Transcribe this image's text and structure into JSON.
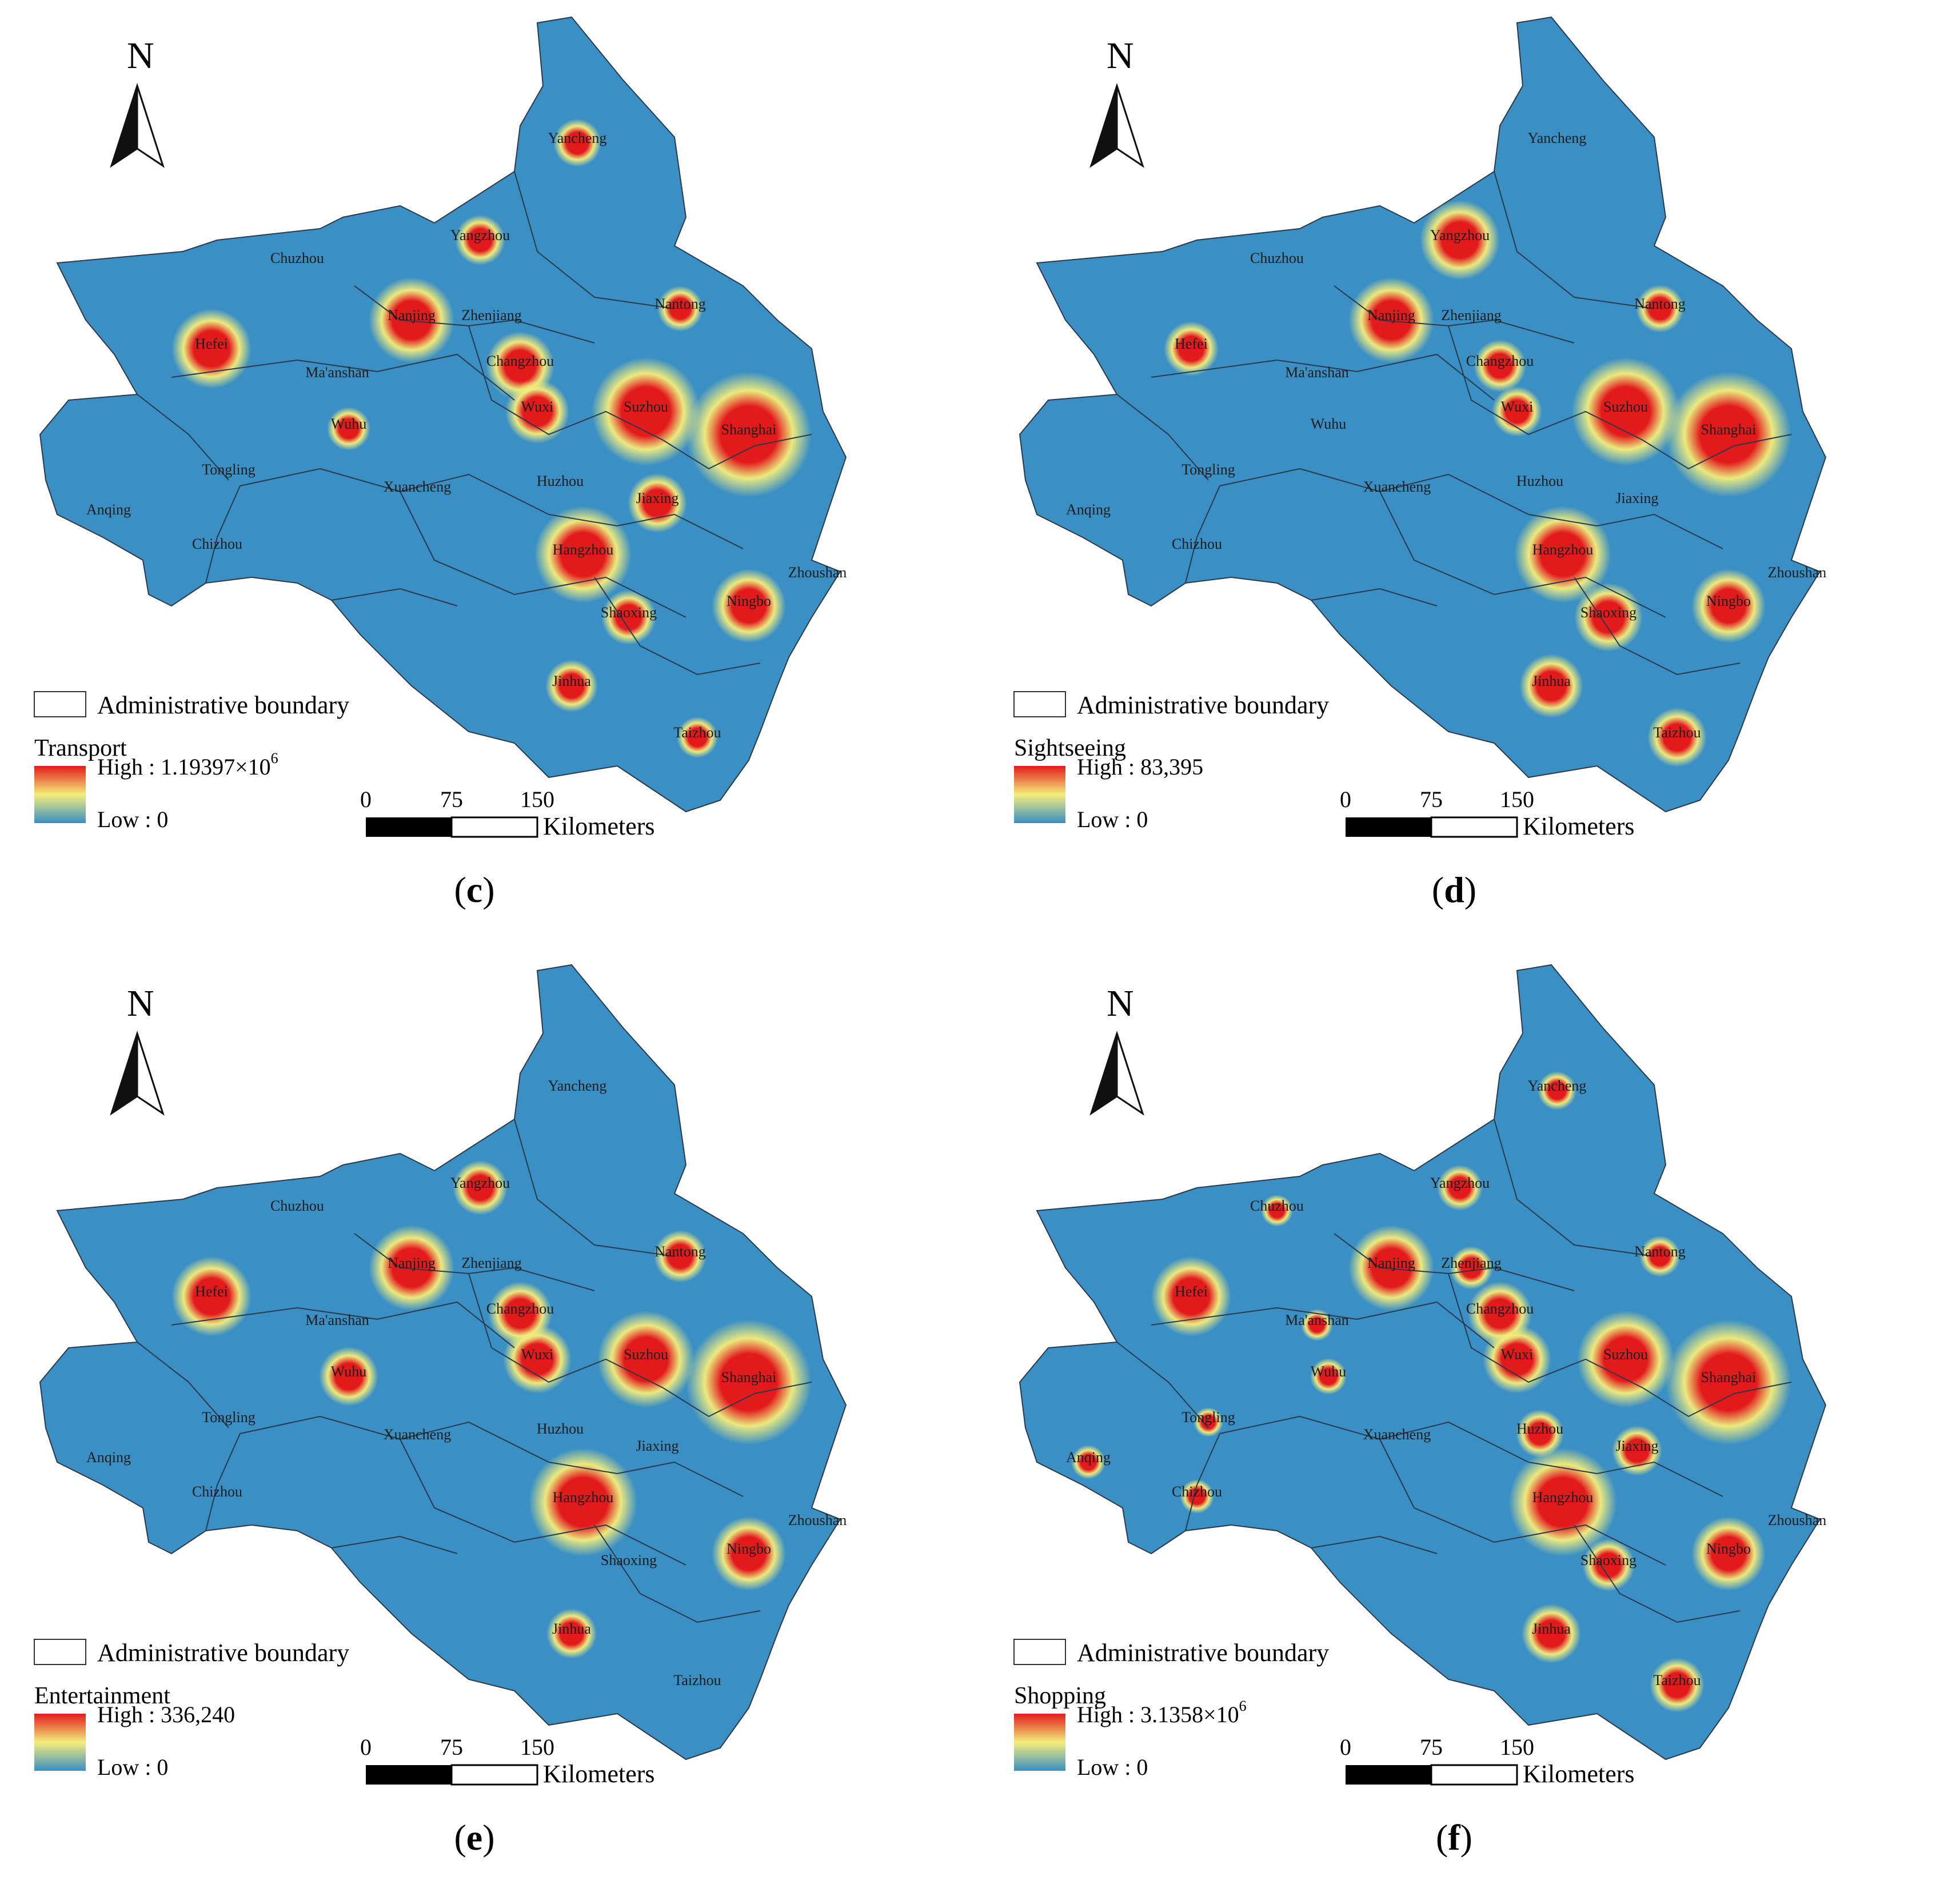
{
  "legend_boundary_label": "Administrative boundary",
  "scale": {
    "ticks": [
      "0",
      "75",
      "150"
    ],
    "unit": "Kilometers"
  },
  "north_label": "N",
  "colors": {
    "background": "#3a8fc4",
    "mid": "#f4ee7a",
    "high": "#e31a1c",
    "boundary": "#2a3a4a"
  },
  "cities": [
    "Yancheng",
    "Chuzhou",
    "Yangzhou",
    "Nantong",
    "Hefei",
    "Nanjing",
    "Zhenjiang",
    "Ma'anshan",
    "Changzhou",
    "Wuxi",
    "Suzhou",
    "Shanghai",
    "Wuhu",
    "Tongling",
    "Xuancheng",
    "Huzhou",
    "Jiaxing",
    "Anqing",
    "Chizhou",
    "Hangzhou",
    "Shaoxing",
    "Ningbo",
    "Zhoushan",
    "Jinhua",
    "Taizhou"
  ],
  "panels": [
    {
      "id": "c",
      "caption": "c",
      "legend_title": "Transport",
      "legend_high": "High : 1.19397×10",
      "legend_high_sup": "6",
      "legend_low": "Low : 0",
      "hotspots": [
        "Shanghai",
        "Suzhou",
        "Hangzhou",
        "Nanjing",
        "Hefei",
        "Ningbo",
        "Changzhou",
        "Wuxi",
        "Jiaxing",
        "Shaoxing",
        "Jinhua",
        "Yangzhou",
        "Yancheng",
        "Nantong",
        "Wuhu",
        "Taizhou"
      ]
    },
    {
      "id": "d",
      "caption": "d",
      "legend_title": "Sightseeing",
      "legend_high": "High : 83,395",
      "legend_high_sup": "",
      "legend_low": "Low : 0",
      "hotspots": [
        "Shanghai",
        "Suzhou",
        "Hangzhou",
        "Nanjing",
        "Yangzhou",
        "Ningbo",
        "Shaoxing",
        "Jinhua",
        "Taizhou",
        "Hefei",
        "Changzhou",
        "Wuxi",
        "Nantong"
      ]
    },
    {
      "id": "e",
      "caption": "e",
      "legend_title": "Entertainment",
      "legend_high": "High : 336,240",
      "legend_high_sup": "",
      "legend_low": "Low : 0",
      "hotspots": [
        "Shanghai",
        "Hangzhou",
        "Suzhou",
        "Nanjing",
        "Hefei",
        "Ningbo",
        "Wuxi",
        "Changzhou",
        "Wuhu",
        "Yangzhou",
        "Nantong",
        "Jinhua"
      ]
    },
    {
      "id": "f",
      "caption": "f",
      "legend_title": "Shopping",
      "legend_high": "High : 3.1358×10",
      "legend_high_sup": "6",
      "legend_low": "Low : 0",
      "hotspots": [
        "Shanghai",
        "Hangzhou",
        "Suzhou",
        "Nanjing",
        "Hefei",
        "Ningbo",
        "Wuxi",
        "Changzhou",
        "Jinhua",
        "Taizhou",
        "Shaoxing",
        "Jiaxing",
        "Huzhou",
        "Yangzhou",
        "Zhenjiang",
        "Nantong",
        "Yancheng",
        "Wuhu",
        "Anqing",
        "Chizhou",
        "Ma'anshan",
        "Chuzhou",
        "Tongling"
      ]
    }
  ]
}
